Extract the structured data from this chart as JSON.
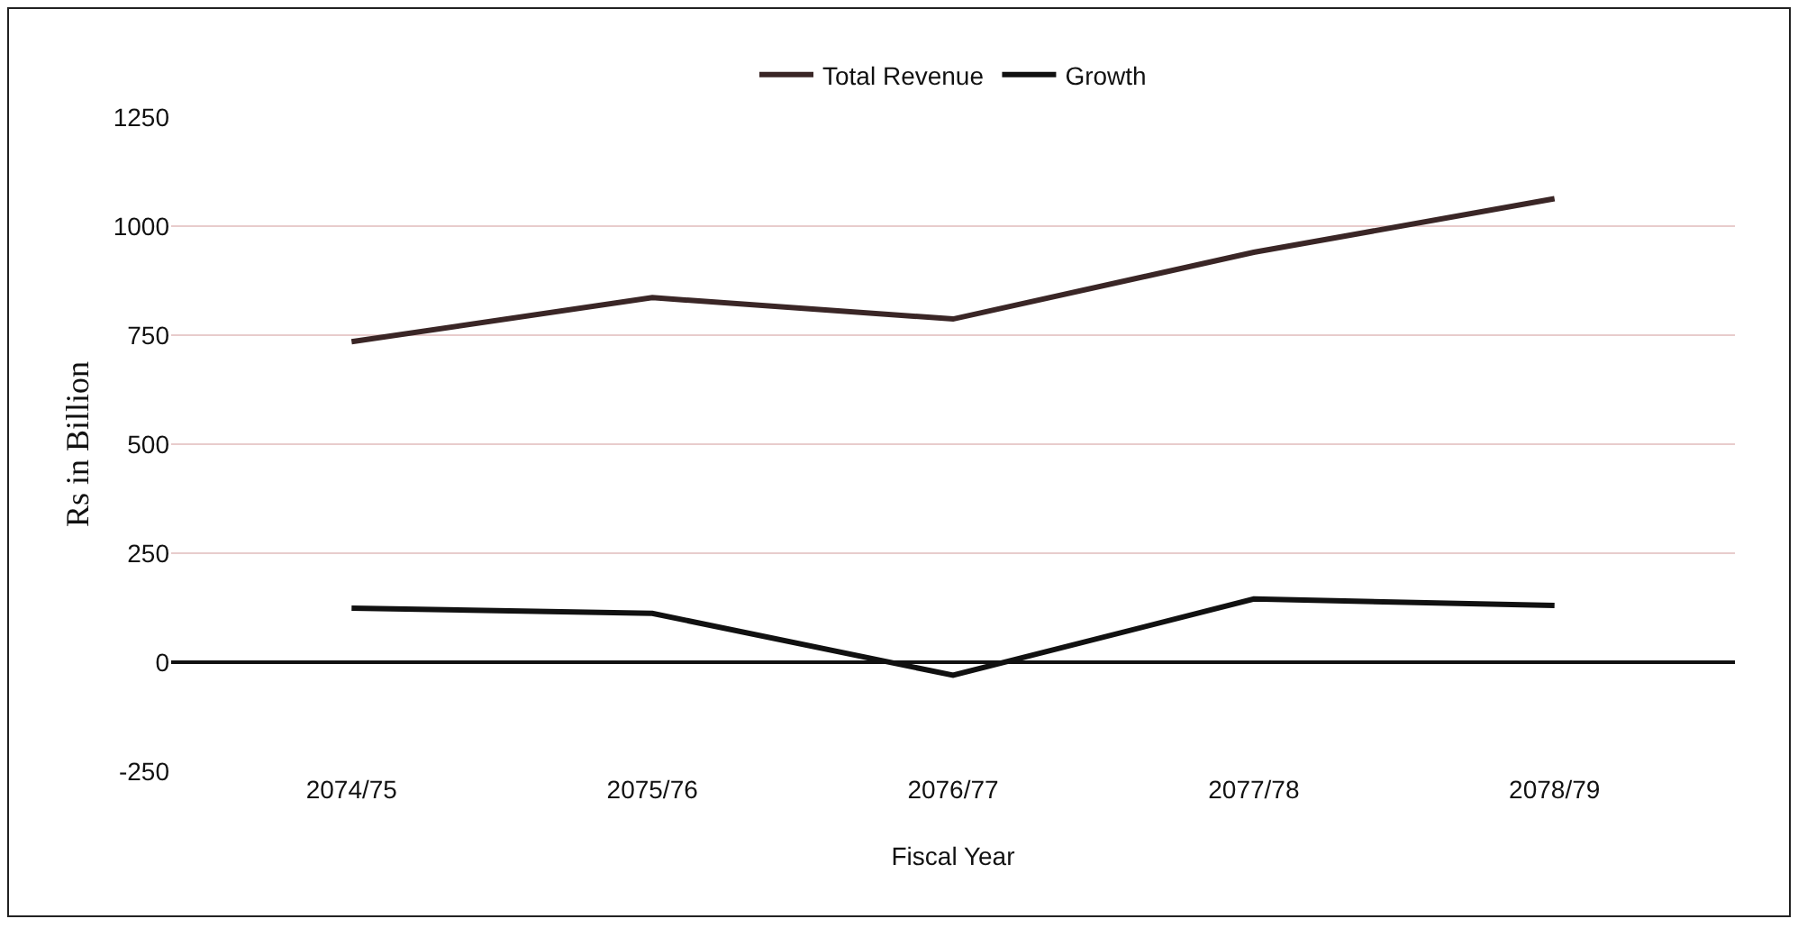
{
  "chart_data": {
    "type": "line",
    "xlabel": "Fiscal Year",
    "ylabel": "Rs in Billion",
    "categories": [
      "2074/75",
      "2075/76",
      "2076/77",
      "2077/78",
      "2078/79"
    ],
    "series": [
      {
        "name": "Total Revenue",
        "color": "#3a2626",
        "values": [
          735,
          836,
          787,
          940,
          1063
        ]
      },
      {
        "name": "Growth",
        "color": "#111111",
        "values": [
          124,
          112,
          -30,
          145,
          130
        ]
      }
    ],
    "ylim": [
      -250,
      1250
    ],
    "yticks": [
      -250,
      0,
      250,
      500,
      750,
      1000,
      1250
    ],
    "grid": "y",
    "legend": "top",
    "marker": "none",
    "line_style": "solid"
  }
}
